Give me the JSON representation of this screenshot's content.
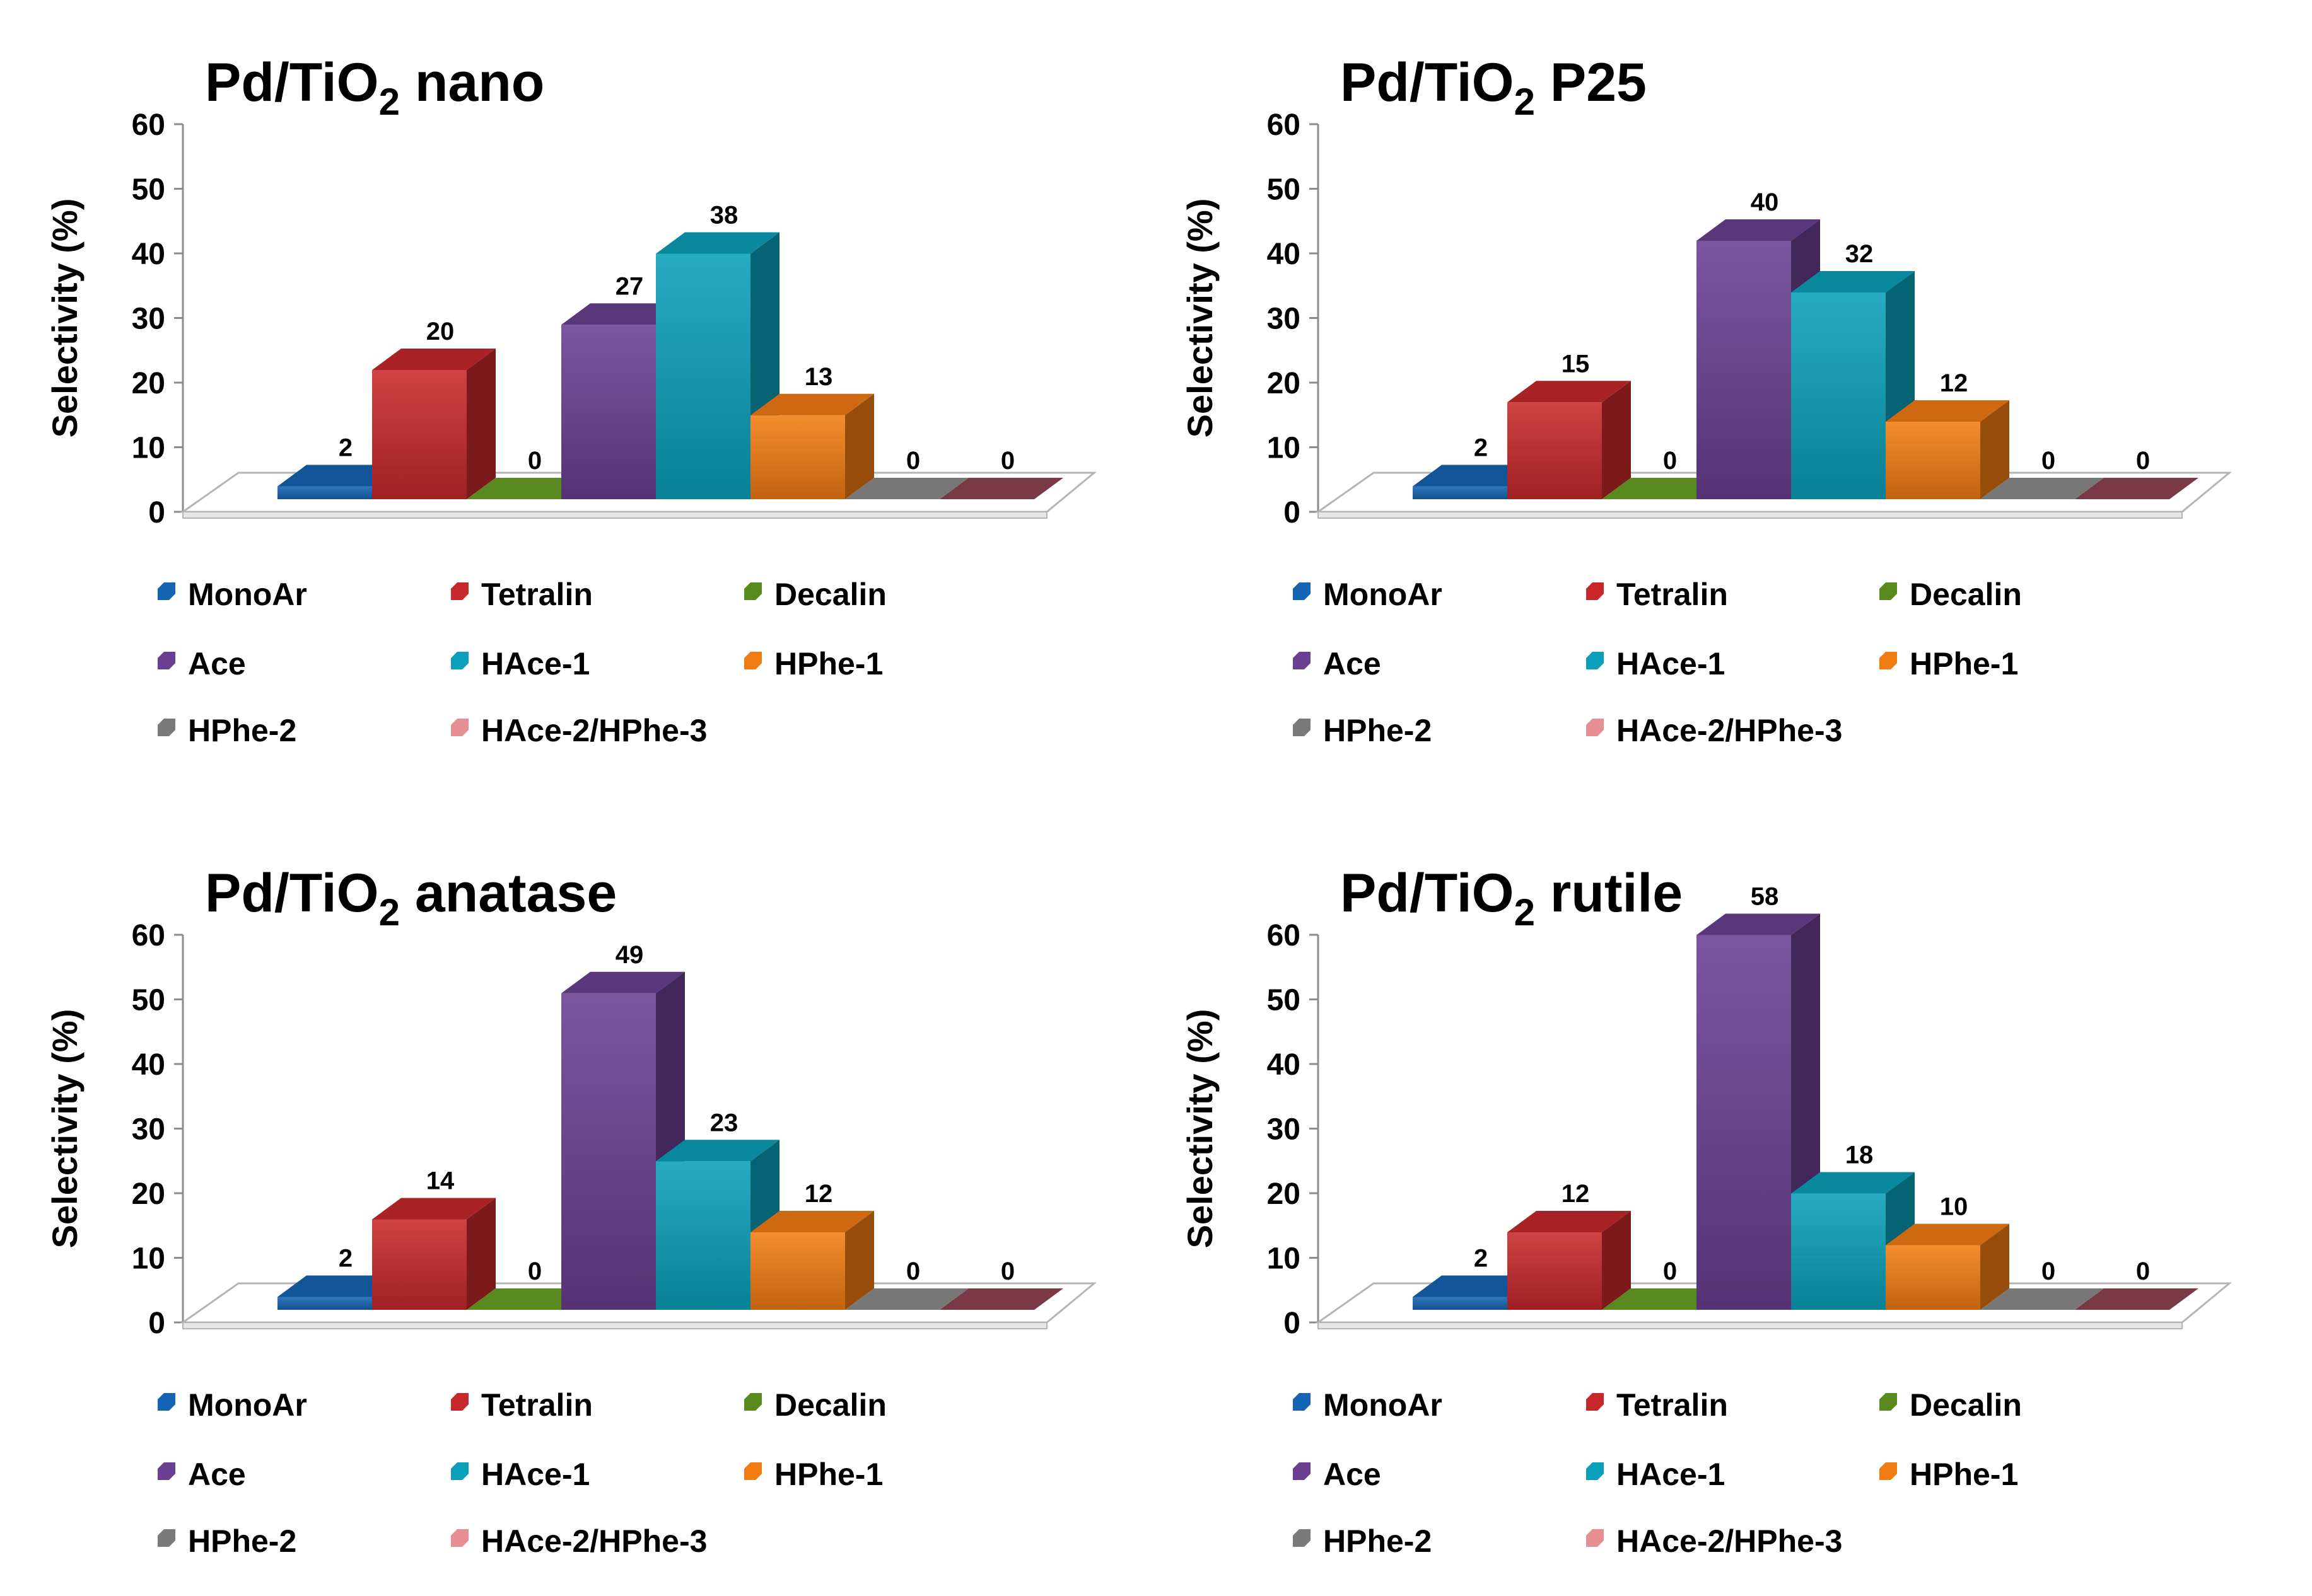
{
  "chart_data": [
    {
      "type": "bar",
      "title": {
        "prefix": "Pd/TiO",
        "subscript": "2",
        "suffix": " nano"
      },
      "ylabel": "Selectivity (%)",
      "ylim": [
        0,
        60
      ],
      "yticks": [
        0,
        10,
        20,
        30,
        40,
        50,
        60
      ],
      "categories": [
        "MonoAr",
        "Tetralin",
        "Decalin",
        "Ace",
        "HAce-1",
        "HPhe-1",
        "HPhe-2",
        "HAce-2/HPhe-3"
      ],
      "values": [
        2,
        20,
        0,
        27,
        38,
        13,
        0,
        0
      ],
      "legend": "bottom"
    },
    {
      "type": "bar",
      "title": {
        "prefix": "Pd/TiO",
        "subscript": "2",
        "suffix": " P25"
      },
      "ylabel": "Selectivity (%)",
      "ylim": [
        0,
        60
      ],
      "yticks": [
        0,
        10,
        20,
        30,
        40,
        50,
        60
      ],
      "categories": [
        "MonoAr",
        "Tetralin",
        "Decalin",
        "Ace",
        "HAce-1",
        "HPhe-1",
        "HPhe-2",
        "HAce-2/HPhe-3"
      ],
      "values": [
        2,
        15,
        0,
        40,
        32,
        12,
        0,
        0
      ],
      "legend": "bottom"
    },
    {
      "type": "bar",
      "title": {
        "prefix": "Pd/TiO",
        "subscript": "2",
        "suffix": " anatase"
      },
      "ylabel": "Selectivity (%)",
      "ylim": [
        0,
        60
      ],
      "yticks": [
        0,
        10,
        20,
        30,
        40,
        50,
        60
      ],
      "categories": [
        "MonoAr",
        "Tetralin",
        "Decalin",
        "Ace",
        "HAce-1",
        "HPhe-1",
        "HPhe-2",
        "HAce-2/HPhe-3"
      ],
      "values": [
        2,
        14,
        0,
        49,
        23,
        12,
        0,
        0
      ],
      "legend": "bottom"
    },
    {
      "type": "bar",
      "title": {
        "prefix": "Pd/TiO",
        "subscript": "2",
        "suffix": " rutile"
      },
      "ylabel": "Selectivity (%)",
      "ylim": [
        0,
        60
      ],
      "yticks": [
        0,
        10,
        20,
        30,
        40,
        50,
        60
      ],
      "categories": [
        "MonoAr",
        "Tetralin",
        "Decalin",
        "Ace",
        "HAce-1",
        "HPhe-1",
        "HPhe-2",
        "HAce-2/HPhe-3"
      ],
      "values": [
        2,
        12,
        0,
        58,
        18,
        10,
        0,
        0
      ],
      "legend": "bottom"
    }
  ],
  "series_colors": {
    "MonoAr": "#1565b4",
    "Tetralin": "#c7282c",
    "Decalin": "#5a8a1f",
    "Ace": "#6a3f91",
    "HAce-1": "#0aa0ba",
    "HPhe-1": "#f27c14",
    "HPhe-2": "#7a7a7a",
    "HAce-2/HPhe-3": "#e58f92"
  },
  "floor_colors": {
    "HPhe-2": "#777777",
    "HAce-2/HPhe-3": "#7a3a45"
  }
}
